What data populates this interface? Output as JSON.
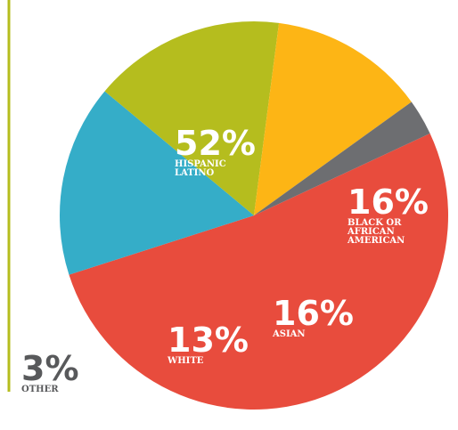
{
  "chart_data": {
    "type": "pie",
    "categories": [
      "HISPANIC LATINO",
      "BLACK OR AFRICAN AMERICAN",
      "ASIAN",
      "WHITE",
      "OTHER"
    ],
    "values": [
      52,
      16,
      16,
      13,
      3
    ],
    "value_labels": [
      "52%",
      "16%",
      "16%",
      "13%",
      "3%"
    ],
    "colors": [
      "#e84c3d",
      "#35adc8",
      "#b5bd1e",
      "#fdb515",
      "#6d6e71"
    ]
  }
}
